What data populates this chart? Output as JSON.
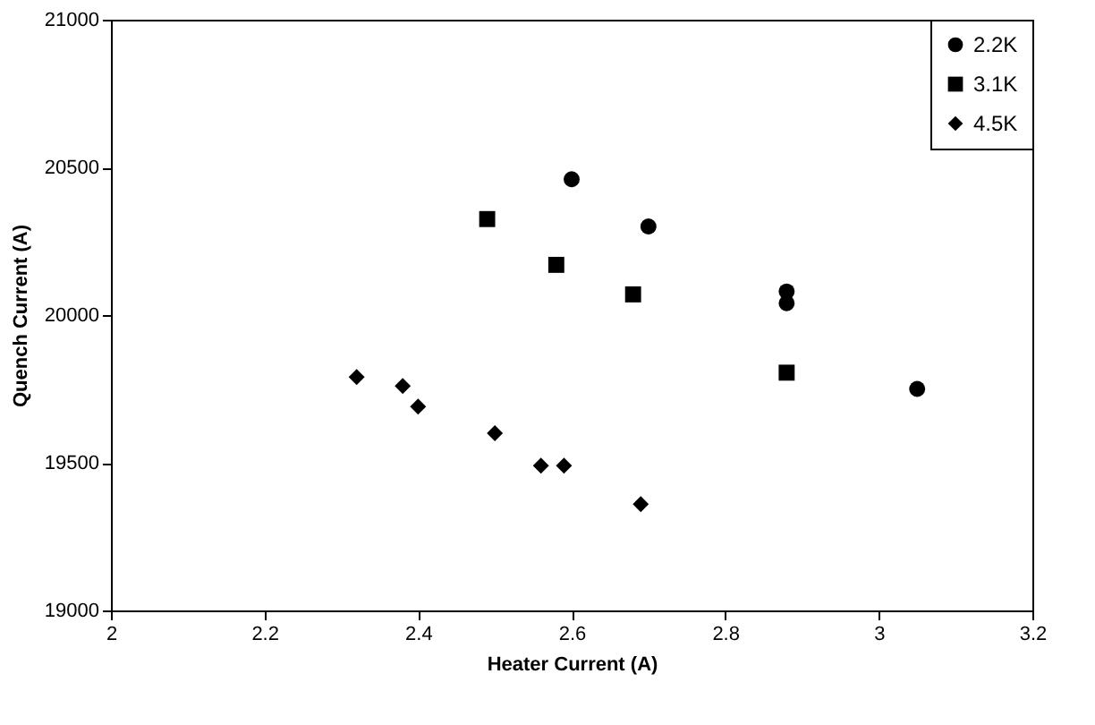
{
  "chart_data": {
    "type": "scatter",
    "xlabel": "Heater Current (A)",
    "ylabel": "Quench Current (A)",
    "xlim": [
      2,
      3.2
    ],
    "xticks": [
      2,
      2.2,
      2.4,
      2.6,
      2.8,
      3,
      3.2
    ],
    "ylim": [
      19000,
      21000
    ],
    "yticks": [
      19000,
      19500,
      20000,
      20500,
      21000
    ],
    "grid": false,
    "legend": "top right",
    "series": [
      {
        "name": "2.2K",
        "color": "#000000",
        "marker": "circle",
        "x": [
          2.6,
          2.7,
          2.88,
          2.88,
          3.05
        ],
        "values": [
          20460,
          20300,
          20080,
          20040,
          19750
        ]
      },
      {
        "name": "3.1K",
        "color": "#000000",
        "marker": "square",
        "x": [
          2.49,
          2.58,
          2.68,
          2.88
        ],
        "values": [
          20325,
          20170,
          20070,
          19805
        ]
      },
      {
        "name": "4.5K",
        "color": "#000000",
        "marker": "diamond",
        "x": [
          2.32,
          2.38,
          2.4,
          2.5,
          2.56,
          2.59,
          2.69
        ],
        "values": [
          19790,
          19760,
          19690,
          19600,
          19490,
          19490,
          19360
        ]
      }
    ]
  }
}
